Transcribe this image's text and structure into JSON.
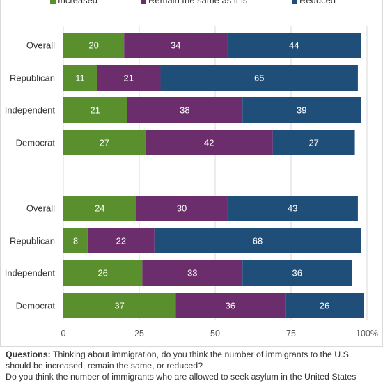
{
  "chart_data": {
    "type": "bar",
    "orientation": "horizontal",
    "stacked": true,
    "legend": [
      "Increased",
      "Remain the same as it is",
      "Reduced"
    ],
    "colors": [
      "#5a8f2e",
      "#6b2d6b",
      "#1f4e79"
    ],
    "xlim": [
      0,
      100
    ],
    "x_ticks": [
      "0",
      "25",
      "50",
      "75",
      "100%"
    ],
    "grid": true,
    "legend_position": "top",
    "groups": [
      {
        "categories": [
          "Overall",
          "Republican",
          "Independent",
          "Democrat"
        ],
        "series": [
          {
            "name": "Increased",
            "values": [
              20,
              11,
              21,
              27
            ]
          },
          {
            "name": "Remain the same as it is",
            "values": [
              34,
              21,
              38,
              42
            ]
          },
          {
            "name": "Reduced",
            "values": [
              44,
              65,
              39,
              27
            ]
          }
        ]
      },
      {
        "categories": [
          "Overall",
          "Republican",
          "Independent",
          "Democrat"
        ],
        "series": [
          {
            "name": "Increased",
            "values": [
              24,
              8,
              26,
              37
            ]
          },
          {
            "name": "Remain the same as it is",
            "values": [
              30,
              22,
              33,
              36
            ]
          },
          {
            "name": "Reduced",
            "values": [
              43,
              68,
              36,
              26
            ]
          }
        ]
      }
    ]
  },
  "notes": {
    "questions_label": "Questions:",
    "question_1": " Thinking about immigration, do you think the number of immigrants to the U.S. should be increased, remain the same, or reduced?",
    "question_2": "Do you think the number of immigrants who are allowed to seek asylum in the United States"
  }
}
